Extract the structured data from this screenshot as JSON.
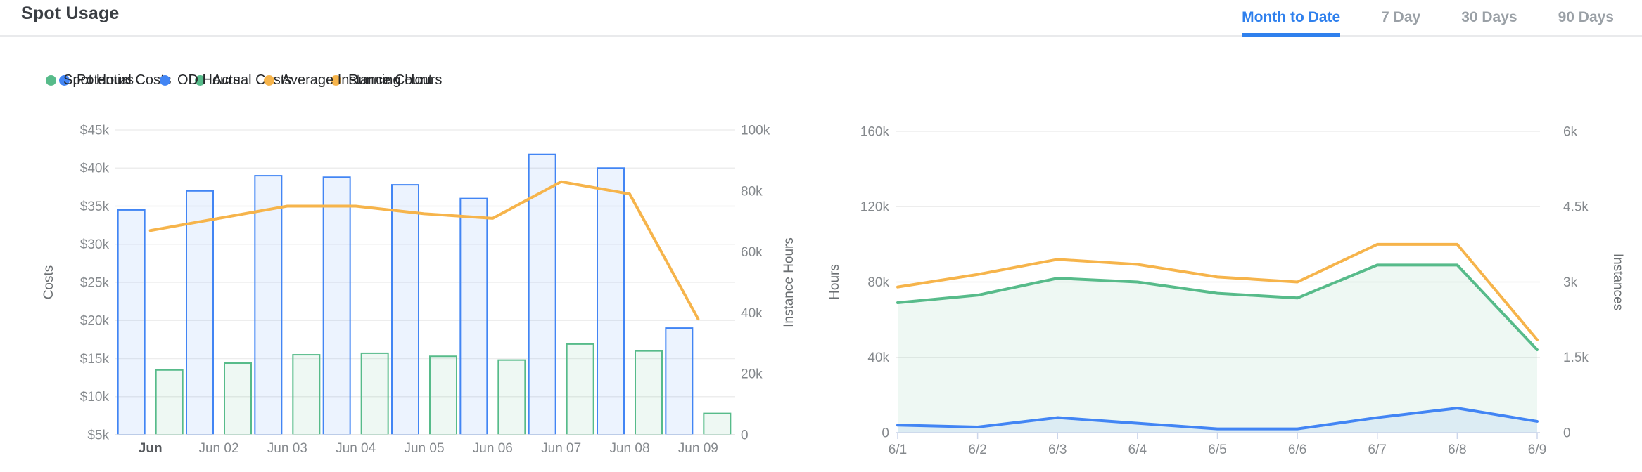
{
  "header": {
    "title": "Spot Usage",
    "tabs": [
      {
        "label": "Month to Date",
        "active": true
      },
      {
        "label": "7 Day",
        "active": false
      },
      {
        "label": "30 Days",
        "active": false
      },
      {
        "label": "90 Days",
        "active": false
      }
    ]
  },
  "colors": {
    "active_tab": "#2f80ed",
    "inactive_tab": "#9aa0a6",
    "blue": "#4285f4",
    "green": "#57bb8a",
    "orange": "#f6b44b",
    "blue_fill": "rgba(66,133,244,0.10)",
    "green_fill": "rgba(87,187,138,0.10)",
    "grid_line": "#ededed",
    "axis_line": "#e4e4e4",
    "tick_mark": "#ccd6eb",
    "tick_text": "#85898d",
    "axis_title_text": "#6a6e71",
    "first_x_label": "#55585c"
  },
  "chart_data": [
    {
      "type": "bar",
      "title": "",
      "categories": [
        "Jun",
        "Jun 02",
        "Jun 03",
        "Jun 04",
        "Jun 05",
        "Jun 06",
        "Jun 07",
        "Jun 08",
        "Jun 09"
      ],
      "series": [
        {
          "name": "Potential Costs",
          "type": "bar",
          "axis": "left",
          "unit": "USD thousands",
          "color": "#4285f4",
          "fill": "rgba(66,133,244,0.10)",
          "values": [
            34.5,
            37,
            39,
            38.8,
            37.8,
            36,
            41.8,
            40,
            19
          ]
        },
        {
          "name": "Actual Costs",
          "type": "bar",
          "axis": "left",
          "unit": "USD thousands",
          "color": "#57bb8a",
          "fill": "rgba(87,187,138,0.10)",
          "values": [
            13.5,
            14.4,
            15.5,
            15.7,
            15.3,
            14.8,
            16.9,
            16,
            7.8
          ]
        },
        {
          "name": "Running Hours",
          "type": "line",
          "axis": "right",
          "unit": "instance hours thousands",
          "color": "#f6b44b",
          "values": [
            67,
            71,
            75,
            75,
            72.5,
            71,
            83,
            79,
            38
          ]
        }
      ],
      "axes": {
        "left": {
          "label": "Costs",
          "min": 5,
          "max": 45,
          "tick_values": [
            5,
            10,
            15,
            20,
            25,
            30,
            35,
            40,
            45
          ],
          "ticks": [
            "$5k",
            "$10k",
            "$15k",
            "$20k",
            "$25k",
            "$30k",
            "$35k",
            "$40k",
            "$45k"
          ]
        },
        "right": {
          "label": "Instance Hours",
          "min": 0,
          "max": 100,
          "tick_values": [
            0,
            20,
            40,
            60,
            80,
            100
          ],
          "ticks": [
            "0",
            "20k",
            "40k",
            "60k",
            "80k",
            "100k"
          ]
        }
      },
      "legend_position": "top",
      "grid": "horizontal"
    },
    {
      "type": "area",
      "title": "",
      "categories": [
        "6/1",
        "6/2",
        "6/3",
        "6/4",
        "6/5",
        "6/6",
        "6/7",
        "6/8",
        "6/9"
      ],
      "series": [
        {
          "name": "Spot Hours",
          "type": "area",
          "axis": "left",
          "unit": "hours thousands",
          "color": "#57bb8a",
          "fill": "rgba(87,187,138,0.10)",
          "values": [
            69,
            73,
            82,
            80,
            74,
            71.5,
            89,
            89,
            44
          ]
        },
        {
          "name": "OD Hours",
          "type": "area",
          "axis": "left",
          "unit": "hours thousands",
          "color": "#4285f4",
          "fill": "rgba(66,133,244,0.10)",
          "values": [
            4,
            3,
            8,
            5,
            2,
            2,
            8,
            13,
            6
          ]
        },
        {
          "name": "Average Instance Count",
          "type": "line",
          "axis": "right",
          "unit": "instances thousands",
          "color": "#f6b44b",
          "values": [
            2.9,
            3.15,
            3.45,
            3.35,
            3.1,
            3.0,
            3.75,
            3.75,
            1.85
          ]
        }
      ],
      "axes": {
        "left": {
          "label": "Hours",
          "min": 0,
          "max": 160,
          "tick_values": [
            0,
            40,
            80,
            120,
            160
          ],
          "ticks": [
            "0",
            "40k",
            "80k",
            "120k",
            "160k"
          ]
        },
        "right": {
          "label": "Instances",
          "min": 0,
          "max": 6,
          "tick_values": [
            0,
            1.5,
            3,
            4.5,
            6
          ],
          "ticks": [
            "0",
            "1.5k",
            "3k",
            "4.5k",
            "6k"
          ]
        }
      },
      "legend_position": "top",
      "grid": "horizontal"
    }
  ]
}
